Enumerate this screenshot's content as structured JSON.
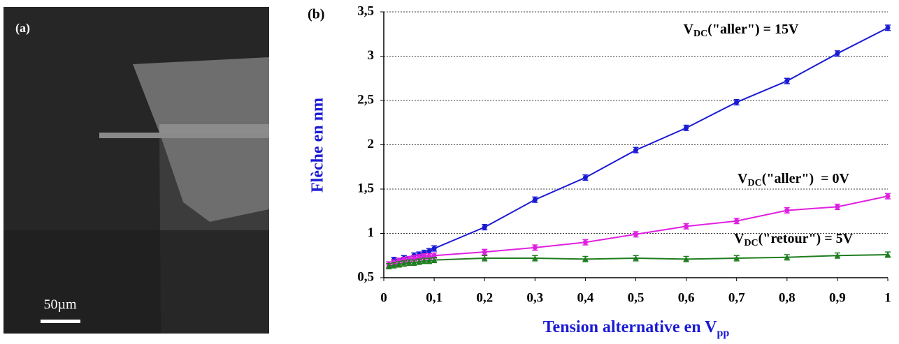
{
  "panel_a": {
    "label": "(a)",
    "scale": "50µm"
  },
  "chart_data": {
    "type": "line",
    "panel": "(b)",
    "x_label": [
      "Tension alternative en V",
      "pp"
    ],
    "y_label": "Flèche en nm",
    "x": [
      0.01,
      0.02,
      0.03,
      0.04,
      0.05,
      0.06,
      0.07,
      0.08,
      0.09,
      0.1,
      0.2,
      0.3,
      0.4,
      0.5,
      0.6,
      0.7,
      0.8,
      0.9,
      1
    ],
    "xlim": [
      0,
      1
    ],
    "xticks": [
      0,
      {
        "value": 0.1,
        "label": "0,1"
      },
      {
        "value": 0.2,
        "label": "0,2"
      },
      {
        "value": 0.3,
        "label": "0,3"
      },
      {
        "value": 0.4,
        "label": "0,4"
      },
      {
        "value": 0.5,
        "label": "0,5"
      },
      {
        "value": 0.6,
        "label": "0,6"
      },
      {
        "value": 0.7,
        "label": "0,7"
      },
      {
        "value": 0.8,
        "label": "0,8"
      },
      {
        "value": 0.9,
        "label": "0,9"
      },
      1
    ],
    "ylim": [
      0.5,
      3.5
    ],
    "yticks": [
      {
        "value": 0.5,
        "label": "0,5"
      },
      1,
      {
        "value": 1.5,
        "label": "1,5"
      },
      2,
      {
        "value": 2.5,
        "label": "2,5"
      },
      3,
      {
        "value": 3.5,
        "label": "3,5"
      }
    ],
    "grid": true,
    "series": [
      {
        "name": [
          "V",
          "DC",
          "(\"aller\") = 15V"
        ],
        "color": "#1a1ad4",
        "marker": "circle",
        "error": 0.03,
        "values": [
          null,
          0.7,
          null,
          0.72,
          null,
          0.75,
          0.76,
          0.78,
          0.8,
          0.83,
          1.07,
          1.38,
          1.63,
          1.94,
          2.19,
          2.48,
          2.72,
          3.03,
          3.32
        ]
      },
      {
        "name": [
          "V",
          "DC",
          "(\"aller\")  = 0V"
        ],
        "color": "#e020e0",
        "marker": "circle",
        "error": 0.03,
        "values": [
          0.65,
          0.67,
          0.69,
          0.7,
          0.71,
          0.72,
          0.73,
          0.74,
          0.74,
          0.75,
          0.79,
          0.84,
          0.9,
          0.99,
          1.08,
          1.14,
          1.26,
          1.3,
          1.42
        ]
      },
      {
        "name": [
          "V",
          "DC",
          "(\"retour\") = 5V"
        ],
        "color": "#1e7d1e",
        "marker": "triangle",
        "error": 0.03,
        "values": [
          0.63,
          0.64,
          0.65,
          0.66,
          0.67,
          0.67,
          0.68,
          0.69,
          0.69,
          0.7,
          0.72,
          0.72,
          0.71,
          0.72,
          0.71,
          0.72,
          0.73,
          0.75,
          0.76
        ]
      }
    ]
  }
}
